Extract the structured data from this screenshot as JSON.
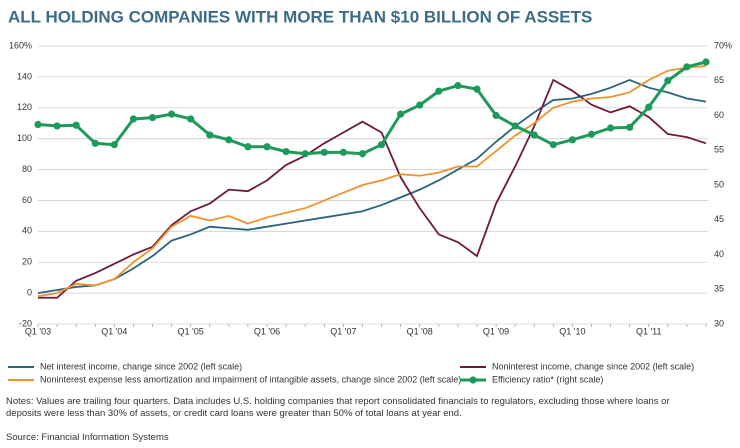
{
  "chart_data": {
    "type": "line",
    "title": "ALL HOLDING COMPANIES WITH MORE THAN $10 BILLION OF ASSETS",
    "categories": [
      "Q1 '03",
      null,
      null,
      null,
      "Q1 '04",
      null,
      null,
      null,
      "Q1 '05",
      null,
      null,
      null,
      "Q1 '06",
      null,
      null,
      null,
      "Q1 '07",
      null,
      null,
      null,
      "Q1 '08",
      null,
      null,
      null,
      "Q1 '09",
      null,
      null,
      null,
      "Q1 '10",
      null,
      null,
      null,
      "Q1 '11",
      null,
      null,
      null
    ],
    "series": [
      {
        "name": "Net interest income, change since 2002 (left scale)",
        "color": "#2b6478",
        "axis": "y",
        "values": [
          0,
          2,
          4,
          5,
          9,
          16,
          24,
          34,
          38,
          43,
          42,
          41,
          43,
          45,
          47,
          49,
          51,
          53,
          57,
          62,
          67,
          73,
          80,
          87,
          98,
          108,
          117,
          125,
          126,
          129,
          133,
          138,
          133,
          130,
          126,
          124
        ]
      },
      {
        "name": "Noninterest income, change since 2002 (left scale)",
        "color": "#6e1a3c",
        "axis": "y",
        "values": [
          -3,
          -3,
          8,
          13,
          19,
          25,
          30,
          44,
          53,
          58,
          67,
          66,
          73,
          83,
          89,
          97,
          104,
          111,
          104,
          75,
          55,
          38,
          33,
          24,
          58,
          82,
          108,
          138,
          131,
          122,
          117,
          121,
          114,
          103,
          101,
          97
        ]
      },
      {
        "name": "Noninterest expense less amortization and impairment of intangible assets, change since 2002 (left scale)",
        "color": "#f0922f",
        "axis": "y",
        "values": [
          -2,
          0,
          6,
          5,
          9,
          20,
          29,
          43,
          50,
          47,
          50,
          45,
          49,
          52,
          55,
          60,
          65,
          70,
          73,
          77,
          76,
          78,
          82,
          82,
          92,
          102,
          110,
          120,
          124,
          126,
          127,
          130,
          138,
          144,
          146,
          147
        ]
      },
      {
        "name": "Efficiency ratio* (right scale)",
        "color": "#1d9a5a",
        "axis": "y2",
        "marker": true,
        "values": [
          58.7,
          58.5,
          58.6,
          56,
          55.8,
          59.5,
          59.7,
          60.2,
          59.5,
          57.2,
          56.5,
          55.5,
          55.5,
          54.8,
          54.5,
          54.7,
          54.7,
          54.5,
          55.8,
          60.2,
          61.5,
          63.5,
          64.3,
          63.8,
          60,
          58.5,
          57.2,
          55.8,
          56.5,
          57.3,
          58.2,
          58.3,
          61.2,
          65,
          67,
          67.7
        ]
      }
    ],
    "ylim": [
      -20,
      160
    ],
    "yticks": [
      -20,
      0,
      20,
      40,
      60,
      80,
      100,
      120,
      140,
      {
        "value": 160,
        "label": "160%"
      }
    ],
    "y2lim": [
      30,
      70
    ],
    "y2ticks": [
      30,
      35,
      40,
      45,
      50,
      55,
      60,
      65,
      {
        "value": 70,
        "label": "70%"
      }
    ],
    "grid": true,
    "notes": "Notes: Values are trailing four quarters. Data includes U.S. holding companies  that report consolidated financials to regulators, excluding those where loans or deposits were less than 30% of assets, or credit card loans were greater than 50% of total loans at year end.",
    "source": "Source: Financial Information Systems"
  }
}
